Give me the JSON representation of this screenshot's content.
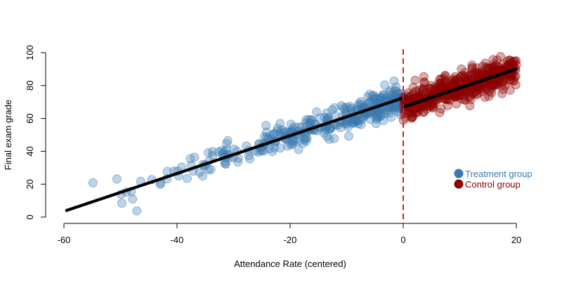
{
  "chart_data": {
    "type": "scatter",
    "title": "",
    "xlabel": "Attendance Rate (centered)",
    "ylabel": "Final exam grade",
    "xlim": [
      -60,
      20
    ],
    "ylim": [
      0,
      100
    ],
    "x_ticks": [
      -60,
      -40,
      -20,
      0,
      20
    ],
    "y_ticks": [
      0,
      20,
      40,
      60,
      80,
      100
    ],
    "cutoff": 0,
    "legend_position": "right",
    "series": [
      {
        "name": "Treatment group",
        "color": "#3a78b0",
        "x_range": [
          -59.5,
          0
        ],
        "approx_points": 350,
        "fit": {
          "intercept": 72.5,
          "slope": 1.15
        }
      },
      {
        "name": "Control group",
        "color": "#8b0000",
        "x_range": [
          0,
          20
        ],
        "approx_points": 500,
        "fit": {
          "intercept": 67,
          "slope": 1.15
        }
      }
    ],
    "fitted_line_color": "#000000",
    "cutoff_line_color": "#cc2222"
  }
}
